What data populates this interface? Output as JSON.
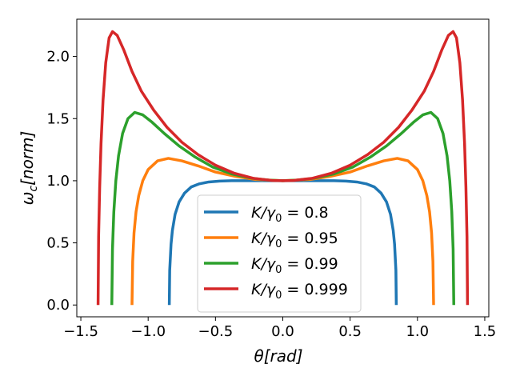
{
  "chart_data": {
    "type": "line",
    "title": "",
    "xlabel": "θ[rad]",
    "ylabel": "ω_c[norm]",
    "xlim": [
      -1.53,
      1.53
    ],
    "ylim": [
      -0.095,
      2.3
    ],
    "grid": false,
    "legend_position": "lower-center",
    "xticks": [
      {
        "value": -1.5,
        "label": "−1.5"
      },
      {
        "value": -1.0,
        "label": "−1.0"
      },
      {
        "value": -0.5,
        "label": "−0.5"
      },
      {
        "value": 0.0,
        "label": "0.0"
      },
      {
        "value": 0.5,
        "label": "0.5"
      },
      {
        "value": 1.0,
        "label": "1.0"
      },
      {
        "value": 1.5,
        "label": "1.5"
      }
    ],
    "yticks": [
      {
        "value": 0.0,
        "label": "0.0"
      },
      {
        "value": 0.5,
        "label": "0.5"
      },
      {
        "value": 1.0,
        "label": "1.0"
      },
      {
        "value": 1.5,
        "label": "1.5"
      },
      {
        "value": 2.0,
        "label": "2.0"
      }
    ],
    "series": [
      {
        "name": "K/γ0 = 0.8",
        "ratio_label": "0.8",
        "color": "#1f77b4",
        "x": [
          -0.843,
          -0.84,
          -0.83,
          -0.82,
          -0.8,
          -0.77,
          -0.73,
          -0.68,
          -0.62,
          -0.55,
          -0.47,
          -0.38,
          -0.28,
          -0.17,
          -0.06,
          0.0,
          0.06,
          0.17,
          0.28,
          0.38,
          0.47,
          0.55,
          0.62,
          0.68,
          0.73,
          0.77,
          0.8,
          0.82,
          0.83,
          0.84,
          0.843
        ],
        "y": [
          0.0,
          0.28,
          0.49,
          0.6,
          0.73,
          0.83,
          0.9,
          0.95,
          0.975,
          0.99,
          0.997,
          1.0,
          1.0,
          1.0,
          1.0,
          1.0,
          1.0,
          1.0,
          1.0,
          1.0,
          0.997,
          0.99,
          0.975,
          0.95,
          0.9,
          0.83,
          0.73,
          0.6,
          0.49,
          0.28,
          0.0
        ]
      },
      {
        "name": "K/γ0 = 0.95",
        "ratio_label": "0.95",
        "color": "#ff7f0e",
        "x": [
          -1.12,
          -1.115,
          -1.105,
          -1.09,
          -1.07,
          -1.04,
          -1.0,
          -0.93,
          -0.85,
          -0.75,
          -0.63,
          -0.5,
          -0.35,
          -0.2,
          0.0,
          0.2,
          0.35,
          0.5,
          0.63,
          0.75,
          0.85,
          0.93,
          1.0,
          1.04,
          1.07,
          1.09,
          1.105,
          1.115,
          1.12
        ],
        "y": [
          0.0,
          0.35,
          0.58,
          0.75,
          0.88,
          1.0,
          1.09,
          1.16,
          1.18,
          1.16,
          1.12,
          1.07,
          1.035,
          1.01,
          1.0,
          1.01,
          1.035,
          1.07,
          1.12,
          1.16,
          1.18,
          1.16,
          1.09,
          1.0,
          0.88,
          0.75,
          0.58,
          0.35,
          0.0
        ]
      },
      {
        "name": "K/γ0 = 0.99",
        "ratio_label": "0.99",
        "color": "#2ca02c",
        "x": [
          -1.27,
          -1.265,
          -1.255,
          -1.24,
          -1.22,
          -1.19,
          -1.15,
          -1.1,
          -1.04,
          -0.97,
          -0.88,
          -0.77,
          -0.65,
          -0.52,
          -0.38,
          -0.23,
          -0.1,
          0.0,
          0.1,
          0.23,
          0.38,
          0.52,
          0.65,
          0.77,
          0.88,
          0.97,
          1.04,
          1.1,
          1.15,
          1.19,
          1.22,
          1.24,
          1.255,
          1.265,
          1.27
        ],
        "y": [
          0.0,
          0.45,
          0.75,
          1.0,
          1.2,
          1.38,
          1.5,
          1.55,
          1.53,
          1.47,
          1.38,
          1.28,
          1.19,
          1.11,
          1.055,
          1.02,
          1.004,
          1.0,
          1.004,
          1.02,
          1.055,
          1.11,
          1.19,
          1.28,
          1.38,
          1.47,
          1.53,
          1.55,
          1.5,
          1.38,
          1.2,
          1.0,
          0.75,
          0.45,
          0.0
        ]
      },
      {
        "name": "K/γ0 = 0.999",
        "ratio_label": "0.999",
        "color": "#d62728",
        "x": [
          -1.372,
          -1.368,
          -1.36,
          -1.35,
          -1.335,
          -1.315,
          -1.29,
          -1.265,
          -1.23,
          -1.18,
          -1.12,
          -1.05,
          -0.96,
          -0.86,
          -0.75,
          -0.63,
          -0.5,
          -0.36,
          -0.22,
          -0.08,
          0.0,
          0.08,
          0.22,
          0.36,
          0.5,
          0.63,
          0.75,
          0.86,
          0.96,
          1.05,
          1.12,
          1.18,
          1.23,
          1.265,
          1.29,
          1.315,
          1.335,
          1.35,
          1.36,
          1.368,
          1.372
        ],
        "y": [
          0.0,
          0.55,
          0.95,
          1.3,
          1.65,
          1.95,
          2.15,
          2.2,
          2.17,
          2.05,
          1.88,
          1.72,
          1.57,
          1.43,
          1.31,
          1.21,
          1.125,
          1.06,
          1.02,
          1.002,
          1.0,
          1.002,
          1.02,
          1.06,
          1.125,
          1.21,
          1.31,
          1.43,
          1.57,
          1.72,
          1.88,
          2.05,
          2.17,
          2.2,
          2.15,
          1.95,
          1.65,
          1.3,
          0.95,
          0.55,
          0.0
        ]
      }
    ]
  }
}
